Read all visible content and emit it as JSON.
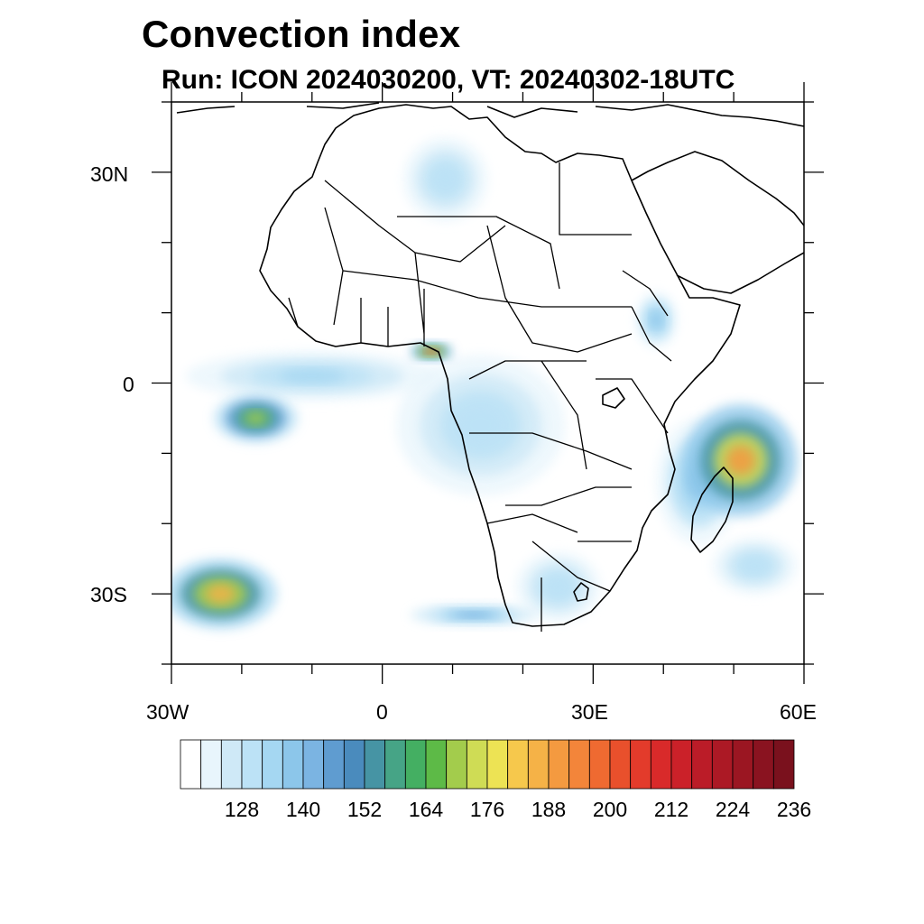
{
  "title": "Convection index",
  "subtitle": "Run: ICON 2024030200,  VT: 20240302-18UTC",
  "map": {
    "type": "filled-contour map",
    "region": "Africa",
    "lon_range": [
      -30,
      60
    ],
    "lat_range": [
      -40,
      40
    ],
    "lon_tick_labels": [
      "30W",
      "0",
      "30E",
      "60E"
    ],
    "lat_tick_labels": [
      "30N",
      "0",
      "30S"
    ],
    "colorbar": {
      "tick_labels": [
        "128",
        "140",
        "152",
        "164",
        "176",
        "188",
        "200",
        "212",
        "224",
        "236"
      ],
      "levels": [
        120,
        124,
        128,
        132,
        136,
        140,
        144,
        148,
        152,
        156,
        160,
        164,
        168,
        172,
        176,
        180,
        184,
        188,
        192,
        196,
        200,
        204,
        208,
        212,
        216,
        220,
        224,
        228,
        232,
        236
      ],
      "colors": [
        "#ffffff",
        "#e8f5fc",
        "#cfe9f7",
        "#bce2f6",
        "#a5d7f2",
        "#8cc6ea",
        "#7bb4e2",
        "#5f9cd0",
        "#4a8bbd",
        "#4694a4",
        "#46a486",
        "#44af62",
        "#5dba47",
        "#a3cc4c",
        "#cfdc55",
        "#ede354",
        "#f6c84c",
        "#f5b247",
        "#f49a40",
        "#f3853a",
        "#ef6a31",
        "#e9502c",
        "#e33b2b",
        "#d92a2a",
        "#cb2129",
        "#bb1c28",
        "#ac1925",
        "#9b1622",
        "#8a1320",
        "#7a111d"
      ]
    },
    "regions": [
      {
        "name": "central-africa",
        "lon": 14,
        "lat": -6,
        "rx": 12,
        "ry": 10,
        "level": 3
      },
      {
        "name": "gulf-of-guinea",
        "lon": -10,
        "lat": 1,
        "rx": 18,
        "ry": 3.5,
        "level": 4
      },
      {
        "name": "mozambique-channel",
        "lon": 45,
        "lat": -14,
        "rx": 6,
        "ry": 9,
        "level": 5
      },
      {
        "name": "madagascar-east-system",
        "lon": 51,
        "lat": -11,
        "rx": 8,
        "ry": 8,
        "level": 18
      },
      {
        "name": "south-atlantic-system",
        "lon": -23,
        "lat": -30,
        "rx": 8,
        "ry": 5,
        "level": 17
      },
      {
        "name": "west-equatorial-atlantic",
        "lon": -18,
        "lat": -5,
        "rx": 6,
        "ry": 3.5,
        "level": 13
      },
      {
        "name": "ethiopia",
        "lon": 39,
        "lat": 9,
        "rx": 3,
        "ry": 4,
        "level": 5
      },
      {
        "name": "sahara-north",
        "lon": 9,
        "lat": 29,
        "rx": 6,
        "ry": 6,
        "level": 3
      },
      {
        "name": "niger-delta",
        "lon": 7,
        "lat": 4.5,
        "rx": 3,
        "ry": 1.2,
        "level": 22
      },
      {
        "name": "south-africa",
        "lon": 25,
        "lat": -29,
        "rx": 6,
        "ry": 5,
        "level": 3
      },
      {
        "name": "south-atlantic-band",
        "lon": 13,
        "lat": -33,
        "rx": 9,
        "ry": 1.5,
        "level": 6
      },
      {
        "name": "indian-ocean-south",
        "lon": 53,
        "lat": -26,
        "rx": 6,
        "ry": 4,
        "level": 3
      }
    ]
  }
}
